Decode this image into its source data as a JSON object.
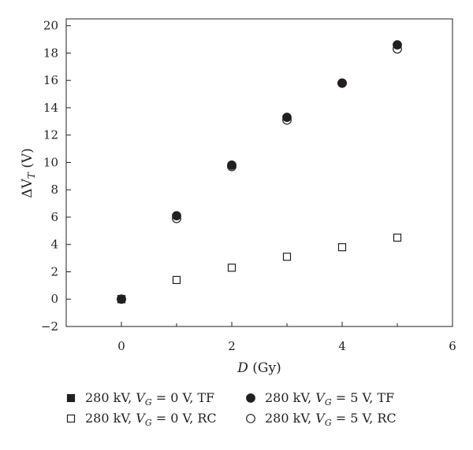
{
  "chart_data": {
    "type": "scatter",
    "xlabel": {
      "var": "D",
      "unit": " (Gy)"
    },
    "ylabel": {
      "prefix": "ΔV",
      "sub": "T",
      "unit": " (V)"
    },
    "xlim": [
      -1,
      6
    ],
    "ylim": [
      -2,
      20.5
    ],
    "xticks": [
      0,
      2,
      4,
      6
    ],
    "xminor": [
      -1,
      0,
      1,
      2,
      3,
      4,
      5,
      6
    ],
    "yticks": [
      -2,
      0,
      2,
      4,
      6,
      8,
      10,
      12,
      14,
      16,
      18,
      20
    ],
    "ytick_labels": [
      "−2",
      "0",
      "2",
      "4",
      "6",
      "8",
      "10",
      "12",
      "14",
      "16",
      "18",
      "20"
    ],
    "grid": false,
    "legend_placement": "below",
    "series": [
      {
        "name": "280 kV, V_G = 0 V, TF",
        "legend": {
          "pre": "280 kV, V",
          "sub": "G",
          "post": " = 0 V, TF"
        },
        "marker": "square",
        "filled": true,
        "color": "#231f20",
        "x": [
          0
        ],
        "y": [
          0.0
        ]
      },
      {
        "name": "280 kV, V_G = 5 V, TF",
        "legend": {
          "pre": "280 kV, V",
          "sub": "G",
          "post": " = 5 V, TF"
        },
        "marker": "circle",
        "filled": true,
        "color": "#231f20",
        "x": [
          0,
          1,
          2,
          3,
          4,
          5
        ],
        "y": [
          0.0,
          6.1,
          9.8,
          13.3,
          15.8,
          18.6
        ]
      },
      {
        "name": "280 kV, V_G = 0 V, RC",
        "legend": {
          "pre": "280 kV, V",
          "sub": "G",
          "post": " = 0 V, RC"
        },
        "marker": "square",
        "filled": false,
        "color": "#231f20",
        "x": [
          0,
          1,
          2,
          3,
          4,
          5
        ],
        "y": [
          0.0,
          1.4,
          2.3,
          3.1,
          3.8,
          4.5
        ]
      },
      {
        "name": "280 kV, V_G = 5 V, RC",
        "legend": {
          "pre": "280 kV, V",
          "sub": "G",
          "post": " = 5 V, RC"
        },
        "marker": "circle",
        "filled": false,
        "color": "#231f20",
        "x": [
          0,
          1,
          2,
          3,
          4,
          5
        ],
        "y": [
          0.0,
          5.9,
          9.7,
          13.1,
          15.8,
          18.3
        ]
      }
    ]
  }
}
